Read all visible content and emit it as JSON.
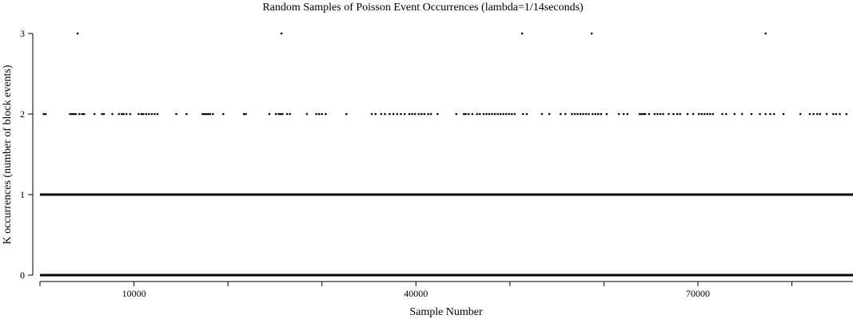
{
  "chart_data": {
    "type": "scatter",
    "title": "Random Samples of Poisson Event Occurrences (lambda=1/14seconds)",
    "xlabel": "Sample Number",
    "ylabel": "K occurrences (number of block events)",
    "xlim": [
      0,
      86500
    ],
    "ylim": [
      -0.03,
      3.05
    ],
    "x_ticks": [
      0,
      10000,
      20000,
      30000,
      40000,
      50000,
      60000,
      70000,
      80000
    ],
    "x_tick_labels": [
      "",
      "10000",
      "",
      "",
      "40000",
      "",
      "",
      "70000",
      ""
    ],
    "y_ticks": [
      0,
      1,
      2,
      3
    ],
    "y_tick_labels": [
      "0",
      "1",
      "2",
      "3"
    ],
    "grid": false,
    "series": [
      {
        "values": [
          {
            "x": 4000,
            "y": 3
          },
          {
            "x": 25700,
            "y": 3
          },
          {
            "x": 51300,
            "y": 3
          },
          {
            "x": 58700,
            "y": 3
          },
          {
            "x": 77200,
            "y": 3
          },
          {
            "x": 400,
            "y": 2
          },
          {
            "x": 600,
            "y": 2
          },
          {
            "x": 3200,
            "y": 2
          },
          {
            "x": 3400,
            "y": 2
          },
          {
            "x": 3600,
            "y": 2
          },
          {
            "x": 3800,
            "y": 2
          },
          {
            "x": 4200,
            "y": 2
          },
          {
            "x": 4500,
            "y": 2
          },
          {
            "x": 4700,
            "y": 2
          },
          {
            "x": 5800,
            "y": 2
          },
          {
            "x": 6600,
            "y": 2
          },
          {
            "x": 6800,
            "y": 2
          },
          {
            "x": 7700,
            "y": 2
          },
          {
            "x": 8400,
            "y": 2
          },
          {
            "x": 8700,
            "y": 2
          },
          {
            "x": 8900,
            "y": 2
          },
          {
            "x": 9200,
            "y": 2
          },
          {
            "x": 9600,
            "y": 2
          },
          {
            "x": 10500,
            "y": 2
          },
          {
            "x": 10800,
            "y": 2
          },
          {
            "x": 11000,
            "y": 2
          },
          {
            "x": 11300,
            "y": 2
          },
          {
            "x": 11600,
            "y": 2
          },
          {
            "x": 11900,
            "y": 2
          },
          {
            "x": 12200,
            "y": 2
          },
          {
            "x": 12500,
            "y": 2
          },
          {
            "x": 14500,
            "y": 2
          },
          {
            "x": 15600,
            "y": 2
          },
          {
            "x": 17300,
            "y": 2
          },
          {
            "x": 17500,
            "y": 2
          },
          {
            "x": 17700,
            "y": 2
          },
          {
            "x": 17900,
            "y": 2
          },
          {
            "x": 18100,
            "y": 2
          },
          {
            "x": 18400,
            "y": 2
          },
          {
            "x": 19500,
            "y": 2
          },
          {
            "x": 21700,
            "y": 2
          },
          {
            "x": 21900,
            "y": 2
          },
          {
            "x": 24400,
            "y": 2
          },
          {
            "x": 25100,
            "y": 2
          },
          {
            "x": 25400,
            "y": 2
          },
          {
            "x": 25600,
            "y": 2
          },
          {
            "x": 25800,
            "y": 2
          },
          {
            "x": 26300,
            "y": 2
          },
          {
            "x": 26600,
            "y": 2
          },
          {
            "x": 28400,
            "y": 2
          },
          {
            "x": 29400,
            "y": 2
          },
          {
            "x": 29700,
            "y": 2
          },
          {
            "x": 30000,
            "y": 2
          },
          {
            "x": 30400,
            "y": 2
          },
          {
            "x": 32600,
            "y": 2
          },
          {
            "x": 35300,
            "y": 2
          },
          {
            "x": 35700,
            "y": 2
          },
          {
            "x": 36300,
            "y": 2
          },
          {
            "x": 36700,
            "y": 2
          },
          {
            "x": 37200,
            "y": 2
          },
          {
            "x": 37600,
            "y": 2
          },
          {
            "x": 38000,
            "y": 2
          },
          {
            "x": 38400,
            "y": 2
          },
          {
            "x": 38800,
            "y": 2
          },
          {
            "x": 39300,
            "y": 2
          },
          {
            "x": 39600,
            "y": 2
          },
          {
            "x": 39900,
            "y": 2
          },
          {
            "x": 40300,
            "y": 2
          },
          {
            "x": 40600,
            "y": 2
          },
          {
            "x": 40900,
            "y": 2
          },
          {
            "x": 41300,
            "y": 2
          },
          {
            "x": 41600,
            "y": 2
          },
          {
            "x": 42300,
            "y": 2
          },
          {
            "x": 44300,
            "y": 2
          },
          {
            "x": 45100,
            "y": 2
          },
          {
            "x": 45300,
            "y": 2
          },
          {
            "x": 45600,
            "y": 2
          },
          {
            "x": 46000,
            "y": 2
          },
          {
            "x": 46500,
            "y": 2
          },
          {
            "x": 46800,
            "y": 2
          },
          {
            "x": 47200,
            "y": 2
          },
          {
            "x": 47500,
            "y": 2
          },
          {
            "x": 47800,
            "y": 2
          },
          {
            "x": 48100,
            "y": 2
          },
          {
            "x": 48400,
            "y": 2
          },
          {
            "x": 48700,
            "y": 2
          },
          {
            "x": 49000,
            "y": 2
          },
          {
            "x": 49300,
            "y": 2
          },
          {
            "x": 49600,
            "y": 2
          },
          {
            "x": 49900,
            "y": 2
          },
          {
            "x": 50200,
            "y": 2
          },
          {
            "x": 50500,
            "y": 2
          },
          {
            "x": 51400,
            "y": 2
          },
          {
            "x": 51800,
            "y": 2
          },
          {
            "x": 53400,
            "y": 2
          },
          {
            "x": 54200,
            "y": 2
          },
          {
            "x": 55400,
            "y": 2
          },
          {
            "x": 55900,
            "y": 2
          },
          {
            "x": 56600,
            "y": 2
          },
          {
            "x": 56900,
            "y": 2
          },
          {
            "x": 57200,
            "y": 2
          },
          {
            "x": 57500,
            "y": 2
          },
          {
            "x": 57800,
            "y": 2
          },
          {
            "x": 58100,
            "y": 2
          },
          {
            "x": 58400,
            "y": 2
          },
          {
            "x": 58800,
            "y": 2
          },
          {
            "x": 59100,
            "y": 2
          },
          {
            "x": 59400,
            "y": 2
          },
          {
            "x": 59700,
            "y": 2
          },
          {
            "x": 60300,
            "y": 2
          },
          {
            "x": 61600,
            "y": 2
          },
          {
            "x": 62100,
            "y": 2
          },
          {
            "x": 62500,
            "y": 2
          },
          {
            "x": 63800,
            "y": 2
          },
          {
            "x": 64000,
            "y": 2
          },
          {
            "x": 64200,
            "y": 2
          },
          {
            "x": 64400,
            "y": 2
          },
          {
            "x": 64800,
            "y": 2
          },
          {
            "x": 65400,
            "y": 2
          },
          {
            "x": 65700,
            "y": 2
          },
          {
            "x": 66000,
            "y": 2
          },
          {
            "x": 66300,
            "y": 2
          },
          {
            "x": 66900,
            "y": 2
          },
          {
            "x": 67400,
            "y": 2
          },
          {
            "x": 67800,
            "y": 2
          },
          {
            "x": 68100,
            "y": 2
          },
          {
            "x": 68900,
            "y": 2
          },
          {
            "x": 69500,
            "y": 2
          },
          {
            "x": 70100,
            "y": 2
          },
          {
            "x": 70400,
            "y": 2
          },
          {
            "x": 70700,
            "y": 2
          },
          {
            "x": 71000,
            "y": 2
          },
          {
            "x": 71300,
            "y": 2
          },
          {
            "x": 71600,
            "y": 2
          },
          {
            "x": 72600,
            "y": 2
          },
          {
            "x": 73000,
            "y": 2
          },
          {
            "x": 73900,
            "y": 2
          },
          {
            "x": 74700,
            "y": 2
          },
          {
            "x": 75700,
            "y": 2
          },
          {
            "x": 76600,
            "y": 2
          },
          {
            "x": 77200,
            "y": 2
          },
          {
            "x": 77700,
            "y": 2
          },
          {
            "x": 78100,
            "y": 2
          },
          {
            "x": 79100,
            "y": 2
          },
          {
            "x": 80900,
            "y": 2
          },
          {
            "x": 81900,
            "y": 2
          },
          {
            "x": 82300,
            "y": 2
          },
          {
            "x": 82700,
            "y": 2
          },
          {
            "x": 83000,
            "y": 2
          },
          {
            "x": 83700,
            "y": 2
          },
          {
            "x": 84400,
            "y": 2
          },
          {
            "x": 84700,
            "y": 2
          },
          {
            "x": 85100,
            "y": 2
          },
          {
            "x": 85800,
            "y": 2
          }
        ]
      }
    ],
    "dense_bands": [
      {
        "y": 1,
        "x_from": 0,
        "x_to": 86500
      },
      {
        "y": 0,
        "x_from": 0,
        "x_to": 86500
      }
    ]
  }
}
